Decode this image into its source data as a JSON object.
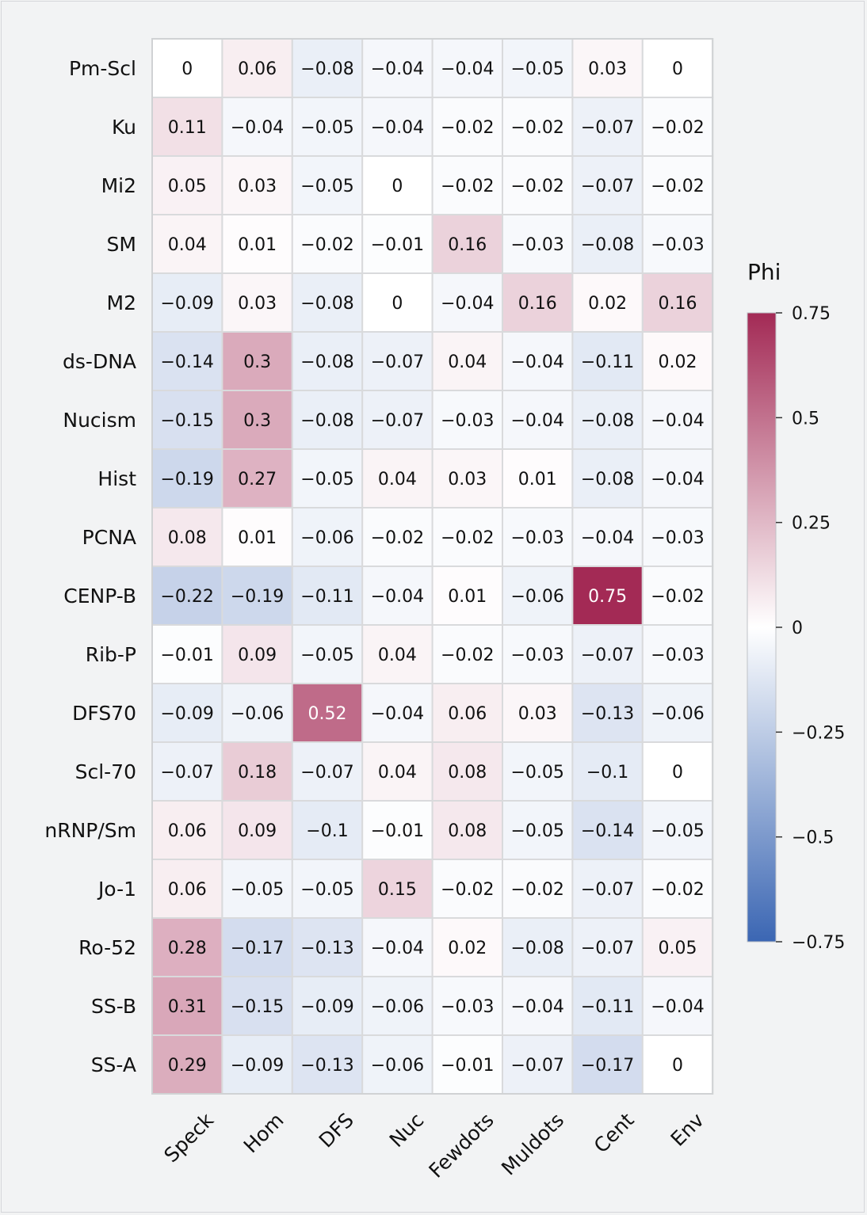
{
  "chart_data": {
    "type": "heatmap",
    "rows": [
      "Pm-Scl",
      "Ku",
      "Mi2",
      "SM",
      "M2",
      "ds-DNA",
      "Nucism",
      "Hist",
      "PCNA",
      "CENP-B",
      "Rib-P",
      "DFS70",
      "Scl-70",
      "nRNP/Sm",
      "Jo-1",
      "Ro-52",
      "SS-B",
      "SS-A"
    ],
    "columns": [
      "Speck",
      "Hom",
      "DFS",
      "Nuc",
      "Fewdots",
      "Muldots",
      "Cent",
      "Env"
    ],
    "values": [
      [
        0,
        0.06,
        -0.08,
        -0.04,
        -0.04,
        -0.05,
        0.03,
        0
      ],
      [
        0.11,
        -0.04,
        -0.05,
        -0.04,
        -0.02,
        -0.02,
        -0.07,
        -0.02
      ],
      [
        0.05,
        0.03,
        -0.05,
        0,
        -0.02,
        -0.02,
        -0.07,
        -0.02
      ],
      [
        0.04,
        0.01,
        -0.02,
        -0.01,
        0.16,
        -0.03,
        -0.08,
        -0.03
      ],
      [
        -0.09,
        0.03,
        -0.08,
        0,
        -0.04,
        0.16,
        0.02,
        0.16
      ],
      [
        -0.14,
        0.3,
        -0.08,
        -0.07,
        0.04,
        -0.04,
        -0.11,
        0.02
      ],
      [
        -0.15,
        0.3,
        -0.08,
        -0.07,
        -0.03,
        -0.04,
        -0.08,
        -0.04
      ],
      [
        -0.19,
        0.27,
        -0.05,
        0.04,
        0.03,
        0.01,
        -0.08,
        -0.04
      ],
      [
        0.08,
        0.01,
        -0.06,
        -0.02,
        -0.02,
        -0.03,
        -0.04,
        -0.03
      ],
      [
        -0.22,
        -0.19,
        -0.11,
        -0.04,
        0.01,
        -0.06,
        0.75,
        -0.02
      ],
      [
        -0.01,
        0.09,
        -0.05,
        0.04,
        -0.02,
        -0.03,
        -0.07,
        -0.03
      ],
      [
        -0.09,
        -0.06,
        0.52,
        -0.04,
        0.06,
        0.03,
        -0.13,
        -0.06
      ],
      [
        -0.07,
        0.18,
        -0.07,
        0.04,
        0.08,
        -0.05,
        -0.1,
        0
      ],
      [
        0.06,
        0.09,
        -0.1,
        -0.01,
        0.08,
        -0.05,
        -0.14,
        -0.05
      ],
      [
        0.06,
        -0.05,
        -0.05,
        0.15,
        -0.02,
        -0.02,
        -0.07,
        -0.02
      ],
      [
        0.28,
        -0.17,
        -0.13,
        -0.04,
        0.02,
        -0.08,
        -0.07,
        0.05
      ],
      [
        0.31,
        -0.15,
        -0.09,
        -0.06,
        -0.03,
        -0.04,
        -0.11,
        -0.04
      ],
      [
        0.29,
        -0.09,
        -0.13,
        -0.06,
        -0.01,
        -0.07,
        -0.17,
        0
      ]
    ],
    "colorbar": {
      "title": "Phi",
      "range": [
        -0.75,
        0.75
      ],
      "ticks": [
        0.75,
        0.5,
        0.25,
        0,
        -0.25,
        -0.5,
        -0.75
      ],
      "tick_labels": [
        "0.75",
        "0.5",
        "0.25",
        "0",
        "−0.25",
        "−0.5",
        "−0.75"
      ],
      "colors": {
        "low": "#3b66b3",
        "mid": "#ffffff",
        "high": "#a32a55"
      }
    }
  }
}
